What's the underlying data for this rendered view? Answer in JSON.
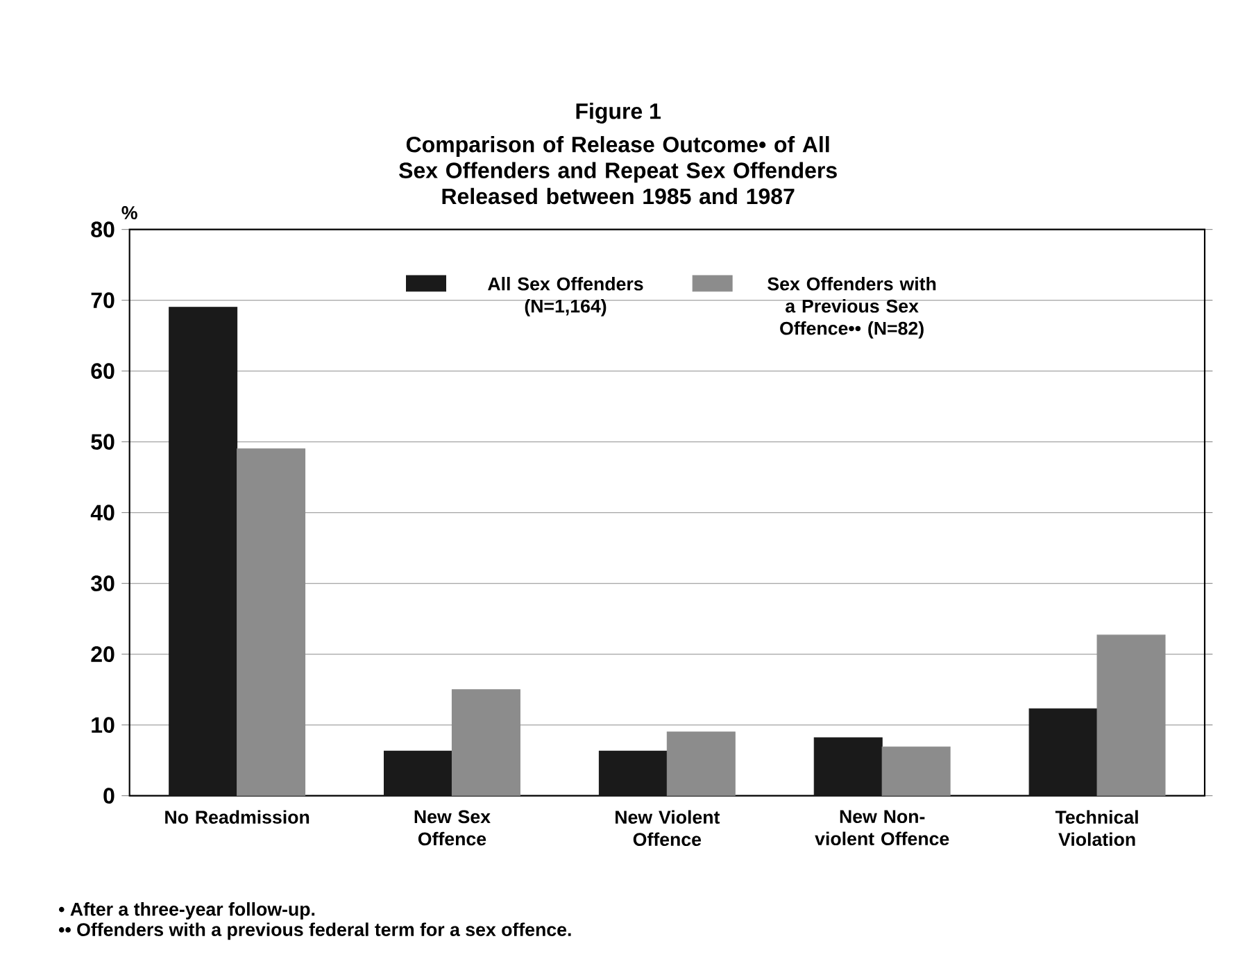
{
  "chart_data": {
    "type": "bar",
    "title": "Figure 1",
    "subtitle": "Comparison of Release Outcome• of All Sex Offenders and Repeat Sex Offenders Released between 1985 and 1987",
    "ylabel": "%",
    "categories": [
      "No Readmission",
      "New Sex Offence",
      "New Violent Offence",
      "New Non-violent Offence",
      "Technical Violation"
    ],
    "series": [
      {
        "name": "All Sex Offenders (N=1,164)",
        "color": "#1a1a1a",
        "values": [
          69,
          6.3,
          6.3,
          8.2,
          12.3
        ]
      },
      {
        "name": "Sex Offenders with a Previous Sex Offence•• (N=82)",
        "color": "#8c8c8c",
        "values": [
          49,
          15,
          9,
          6.9,
          22.7
        ]
      }
    ],
    "ylim": [
      0,
      80
    ],
    "yticks": [
      0,
      10,
      20,
      30,
      40,
      50,
      60,
      70,
      80
    ],
    "grid": "y",
    "legend": "top",
    "annotations": [
      "• After a three-year follow-up.",
      "•• Offenders with a previous federal term for a sex offence."
    ]
  }
}
